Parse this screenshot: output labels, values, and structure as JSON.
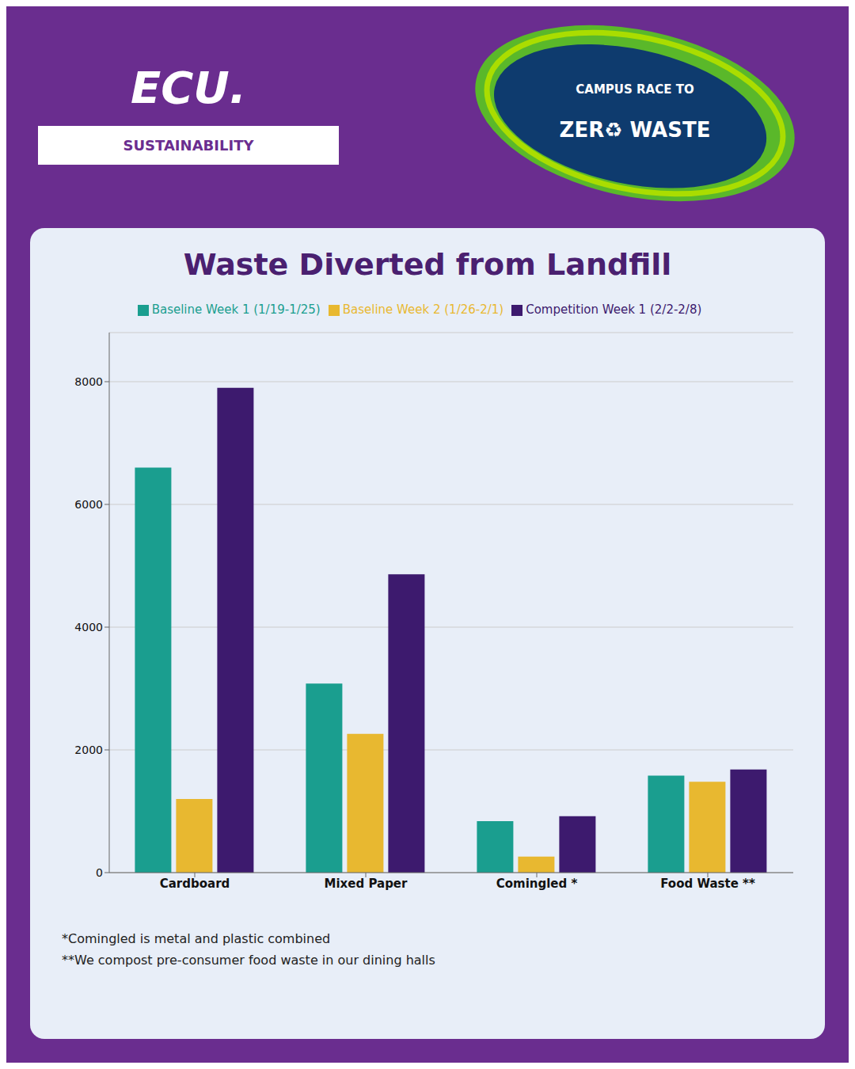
{
  "chart_data": {
    "type": "bar",
    "title": "Waste Diverted from Landfill",
    "categories": [
      "Cardboard",
      "Mixed Paper",
      "Comingled *",
      "Food Waste **"
    ],
    "series": [
      {
        "name": "Baseline Week 1 (1/19-1/25)",
        "color": "#1a9e8f",
        "values": [
          6600,
          3080,
          840,
          1580
        ]
      },
      {
        "name": "Baseline Week 2 (1/26-2/1)",
        "color": "#e8b830",
        "values": [
          1200,
          2260,
          260,
          1480
        ]
      },
      {
        "name": "Competition Week 1 (2/2-2/8)",
        "color": "#3d1a6e",
        "values": [
          7900,
          4860,
          920,
          1680
        ]
      }
    ],
    "ylim": [
      0,
      8800
    ],
    "yticks": [
      0,
      2000,
      4000,
      6000,
      8000
    ],
    "grid": true,
    "legend": "upper center",
    "annotations": [
      "*Comingled is metal and plastic combined",
      "**We compost pre-consumer food waste in our dining halls",
      "ECU.",
      "SUSTAINABILITY",
      "CAMPUS RACE TO",
      "ZER♻ WASTE"
    ]
  }
}
